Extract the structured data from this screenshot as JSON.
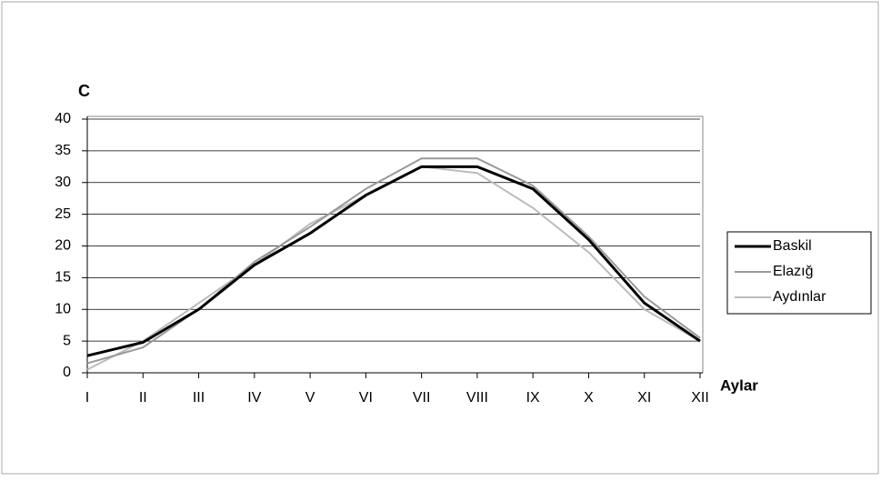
{
  "chart_data": {
    "type": "line",
    "y_label": "C",
    "x_label": "Aylar",
    "categories": [
      "I",
      "II",
      "III",
      "IV",
      "V",
      "VI",
      "VII",
      "VIII",
      "IX",
      "X",
      "XI",
      "XII"
    ],
    "series": [
      {
        "name": "Baskil",
        "color": "#000000",
        "values": [
          2.7,
          4.8,
          10,
          17,
          22,
          28,
          32.5,
          32.5,
          29,
          21,
          11,
          5
        ]
      },
      {
        "name": "Elazığ",
        "color": "#999999",
        "values": [
          1.5,
          4,
          10,
          17.5,
          23,
          29,
          33.8,
          33.8,
          29.5,
          21.5,
          12,
          5.5
        ]
      },
      {
        "name": "Aydınlar",
        "color": "#bbbbbb",
        "values": [
          0.5,
          5,
          11,
          17,
          23.5,
          28,
          32.5,
          31.5,
          26,
          19,
          10,
          5
        ]
      }
    ],
    "ylim": [
      0,
      40
    ],
    "yticks": [
      0,
      5,
      10,
      15,
      20,
      25,
      30,
      35,
      40
    ],
    "grid": true,
    "legend": "right"
  }
}
